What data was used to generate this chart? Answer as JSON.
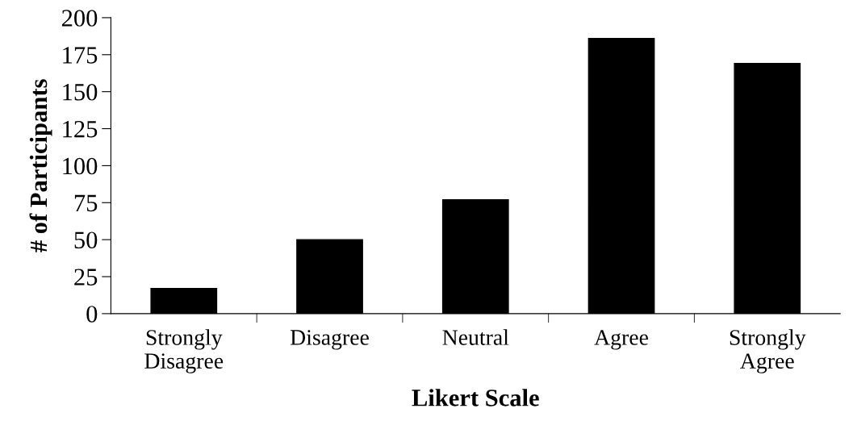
{
  "chart_data": {
    "type": "bar",
    "xlabel": "Likert Scale",
    "ylabel": "# of Participants",
    "categories": [
      "Strongly\nDisagree",
      "Disagree",
      "Neutral",
      "Agree",
      "Strongly\nAgree"
    ],
    "values": [
      17,
      50,
      77,
      186,
      169
    ],
    "color": "#000000",
    "ylim": [
      0,
      200
    ],
    "yticks": [
      0,
      25,
      50,
      75,
      100,
      125,
      150,
      175,
      200
    ],
    "grid": false,
    "legend": false
  }
}
